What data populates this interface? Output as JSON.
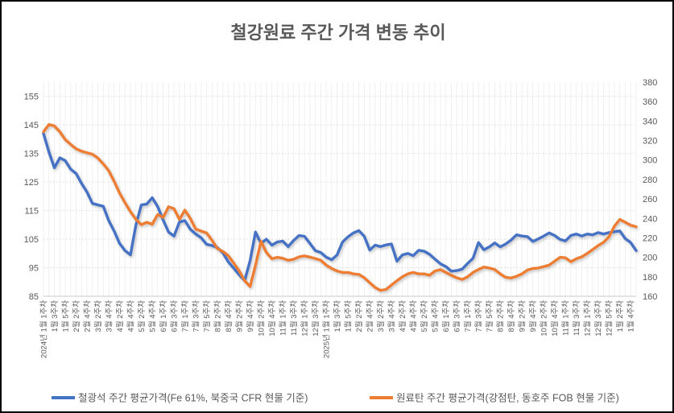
{
  "chart_data": {
    "type": "line",
    "title": "철강원료 주간 가격 변동 추이",
    "label_every_n_points": 2,
    "x_labels": [
      "2024년 1월 1주차",
      "1월 3주차",
      "1월 5주차",
      "2월 2주차",
      "2월 4주차",
      "3월 2주차",
      "3월 4주차",
      "4월 2주차",
      "4월 4주차",
      "5월 2주차",
      "5월 4주차",
      "6월 1주차",
      "6월 3주차",
      "7월 1주차",
      "7월 3주차",
      "7월 5주차",
      "8월 2주차",
      "8월 4주차",
      "9월 2주차",
      "9월 4주차",
      "10월 2주차",
      "10월 4주차",
      "11월 1주차",
      "11월 3주차",
      "12월 1주차",
      "12월 3주차",
      "2025년 1월 1주차",
      "1월 3주차",
      "1월 5주차",
      "2월 2주차",
      "2월 4주차",
      "3월 2주차",
      "3월 4주차",
      "4월 2주차",
      "4월 4주차",
      "5월 2주차",
      "5월 4주차",
      "6월 1주차",
      "6월 3주차",
      "7월 1주차",
      "7월 3주차",
      "7월 5주차",
      "8월 2주차",
      "8월 4주차",
      "9월 2주차",
      "9월 4주차",
      "10월 2주차",
      "10월 4주차",
      "11월 1주차",
      "11월 3주차",
      "12월 1주차",
      "12월 3주차",
      "12월 5주차",
      "1월 2주차",
      "1월 4주차"
    ],
    "left_axis": {
      "min": 85,
      "max": 160,
      "tick_step": 10,
      "tick_labels": [
        155,
        145,
        135,
        125,
        115,
        105,
        95,
        85
      ]
    },
    "right_axis": {
      "min": 160,
      "max": 380,
      "tick_step": 20,
      "tick_labels": [
        380,
        360,
        340,
        320,
        300,
        280,
        260,
        240,
        220,
        200,
        180,
        160
      ]
    },
    "grid": {
      "horizontal": "dashed",
      "vertical": "per-category"
    },
    "legend_position": "bottom",
    "series": [
      {
        "name": "철광석 주간 평균가격(Fe 61%, 북중국 CFR 현물 기준)",
        "axis": "left",
        "color": "#4472C4",
        "values": [
          142,
          135.5,
          130,
          133.5,
          132.5,
          129.5,
          128,
          124.5,
          121.5,
          117.5,
          117,
          116.5,
          111.5,
          107.8,
          103.5,
          101,
          99.5,
          110,
          117,
          117.3,
          119.5,
          116.4,
          111.7,
          107.5,
          106.1,
          111,
          111.5,
          108.5,
          106.8,
          105.5,
          103.2,
          102.8,
          102,
          100.2,
          97,
          94.8,
          92.5,
          90.5,
          97.5,
          107.5,
          103.5,
          105,
          102.9,
          104,
          104.3,
          102.4,
          104.5,
          106.3,
          106,
          103.5,
          101,
          100.3,
          98.7,
          97.8,
          99.5,
          104,
          105.8,
          107.2,
          108,
          106,
          101.2,
          102.9,
          102.4,
          103,
          103.3,
          97.3,
          99.5,
          100,
          99.2,
          101.1,
          100.8,
          99.7,
          98,
          96.4,
          95.4,
          93.8,
          94,
          94.5,
          96.5,
          98.3,
          103.8,
          101.3,
          102.3,
          103.7,
          102.3,
          103.3,
          104.7,
          106.5,
          106.1,
          105.9,
          104.2,
          105.1,
          106.1,
          107.2,
          106.3,
          104.9,
          104.4,
          106.3,
          106.8,
          106.1,
          106.8,
          106.5,
          107.3,
          106.8,
          107.3,
          107.6,
          107.9,
          105.2,
          103.8,
          101
        ]
      },
      {
        "name": "원료탄 주간 평균가격(강점탄, 동호주 FOB 현물 기준)",
        "axis": "right",
        "color": "#ED7D31",
        "values": [
          329,
          336.5,
          335,
          329,
          321,
          316,
          311.5,
          309,
          307.5,
          306,
          302,
          296,
          289,
          278,
          266,
          256,
          247,
          239,
          233.5,
          236,
          234,
          244,
          241,
          252,
          250,
          239,
          248.5,
          240,
          229,
          227,
          225,
          217.5,
          209,
          206,
          201.6,
          194,
          186,
          176,
          170,
          192,
          216.5,
          205,
          198.5,
          200,
          199,
          197,
          198,
          200.5,
          201.5,
          200.2,
          198.8,
          197,
          192,
          188.5,
          186,
          184.5,
          184.5,
          183,
          182.5,
          179,
          174,
          169,
          166,
          167,
          171.5,
          176,
          180,
          183,
          184.5,
          183,
          183,
          181.6,
          186,
          187.4,
          184.5,
          181.6,
          179,
          177.3,
          180,
          184.5,
          187.5,
          190,
          189,
          187.5,
          183,
          179.5,
          178.8,
          180.5,
          183,
          187,
          188.5,
          189,
          190.5,
          192,
          196,
          200,
          199.5,
          195.5,
          198.5,
          200.5,
          204,
          208,
          212,
          215.5,
          221,
          232,
          239,
          236,
          233,
          231.5
        ]
      }
    ]
  },
  "legend": [
    {
      "label": "철광석 주간 평균가격(Fe 61%, 북중국 CFR 현물 기준)",
      "color": "#4472C4"
    },
    {
      "label": "원료탄 주간 평균가격(강점탄, 동호주 FOB 현물 기준)",
      "color": "#ED7D31"
    }
  ],
  "colors": {
    "title_text": "#595959",
    "axis_text": "#595959",
    "gridline_h": "#D9D9D9",
    "gridline_v": "#ECECEC",
    "axis_line": "#C9C9C9",
    "frame_border": "#000000"
  }
}
